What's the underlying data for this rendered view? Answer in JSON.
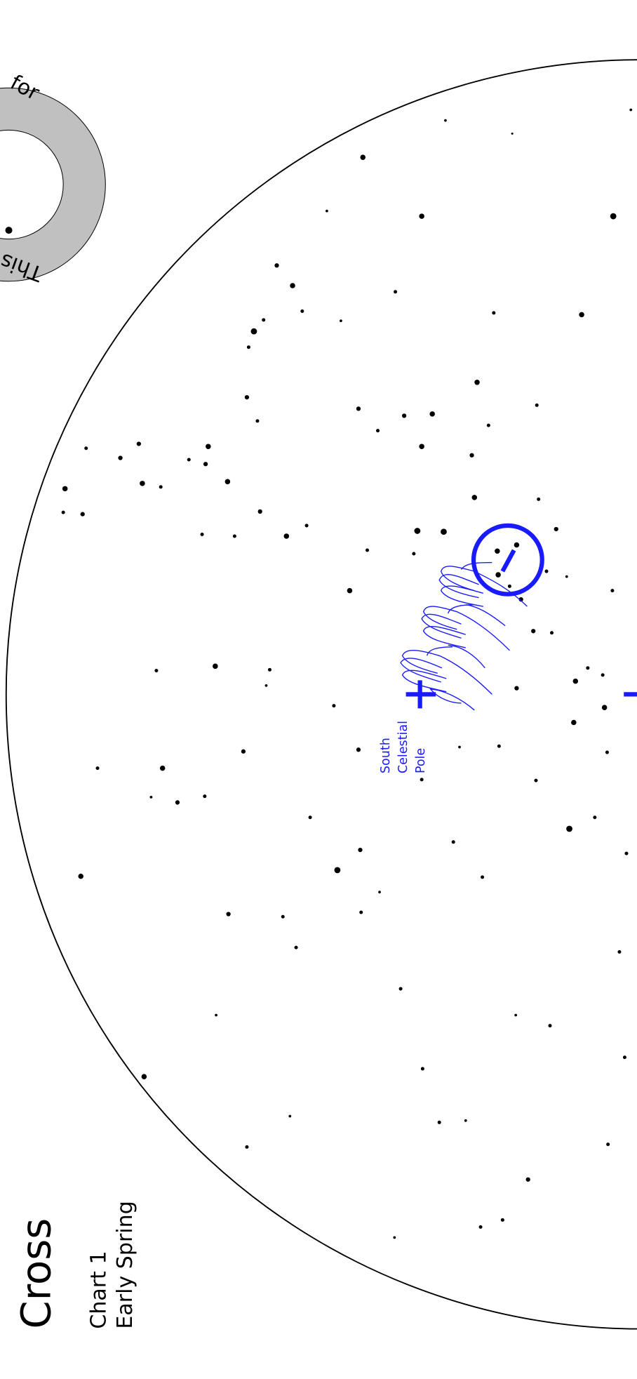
{
  "title": "Cross",
  "chart_label": "Chart 1",
  "season": "Early Spring",
  "pole_label": [
    "South",
    "Celestial",
    "Pole"
  ],
  "dial": {
    "upper_text": "for",
    "lower_text": "This"
  }
}
